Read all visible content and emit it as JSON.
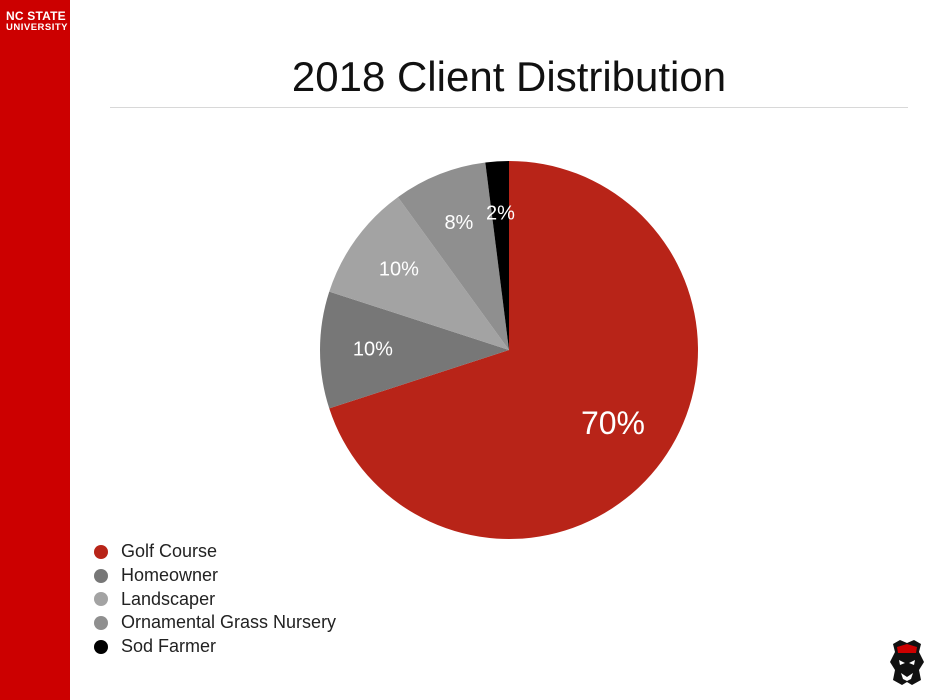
{
  "brand": {
    "line1": "NC STATE",
    "line2": "UNIVERSITY"
  },
  "title": "2018 Client Distribution",
  "chart_data": {
    "type": "pie",
    "categories": [
      "Golf Course",
      "Homeowner",
      "Landscaper",
      "Ornamental Grass Nursery",
      "Sod Farmer"
    ],
    "values": [
      70,
      10,
      10,
      8,
      2
    ],
    "data_labels": [
      "70%",
      "10%",
      "10%",
      "8%",
      "2%"
    ],
    "colors": [
      "#b82418",
      "#777777",
      "#a3a3a3",
      "#8f8f8f",
      "#000000"
    ],
    "legend_position": "bottom-left"
  },
  "colors": {
    "accent": "#cc0000"
  },
  "logo_icon": "wolf-mascot-icon"
}
